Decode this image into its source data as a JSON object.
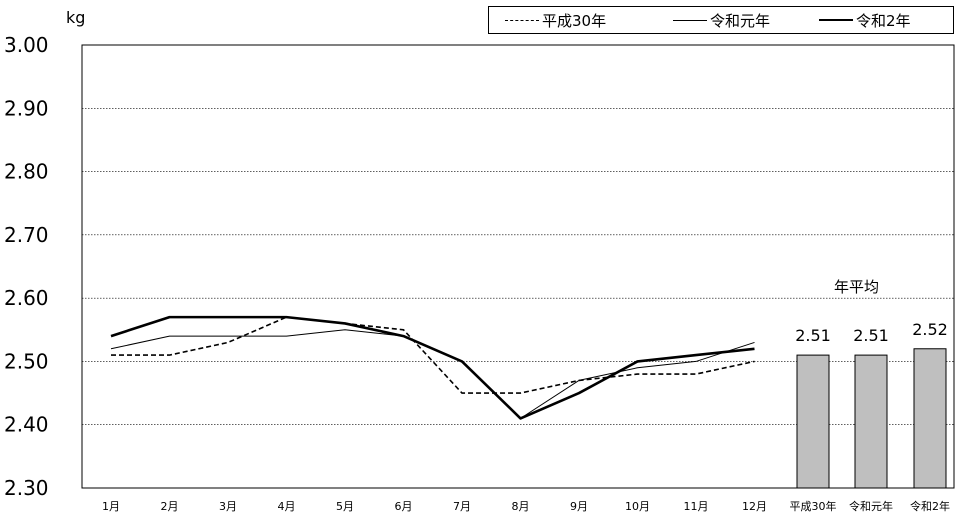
{
  "chart_data": {
    "type": "line",
    "unit": "kg",
    "ylim": [
      2.3,
      3.0
    ],
    "y_ticks": [
      "3.00",
      "2.90",
      "2.80",
      "2.70",
      "2.60",
      "2.50",
      "2.40",
      "2.30"
    ],
    "grid": true,
    "legend_position": "top-right",
    "categories": [
      "1月",
      "2月",
      "3月",
      "4月",
      "5月",
      "6月",
      "7月",
      "8月",
      "9月",
      "10月",
      "11月",
      "12月"
    ],
    "series": [
      {
        "name": "平成30年",
        "style": "dashed",
        "values": [
          2.51,
          2.51,
          2.53,
          2.57,
          2.56,
          2.55,
          2.45,
          2.45,
          2.47,
          2.48,
          2.48,
          2.5
        ]
      },
      {
        "name": "令和元年",
        "style": "thin",
        "values": [
          2.52,
          2.54,
          2.54,
          2.54,
          2.55,
          2.54,
          2.5,
          2.41,
          2.47,
          2.49,
          2.5,
          2.53
        ]
      },
      {
        "name": "令和2年",
        "style": "thick",
        "values": [
          2.54,
          2.57,
          2.57,
          2.57,
          2.56,
          2.54,
          2.5,
          2.41,
          2.45,
          2.5,
          2.51,
          2.52
        ]
      }
    ],
    "annual_average": {
      "title": "年平均",
      "categories": [
        "平成30年",
        "令和元年",
        "令和2年"
      ],
      "values": [
        2.51,
        2.51,
        2.52
      ],
      "labels": [
        "2.51",
        "2.51",
        "2.52"
      ],
      "bar_color": "#bfbfbf"
    }
  }
}
